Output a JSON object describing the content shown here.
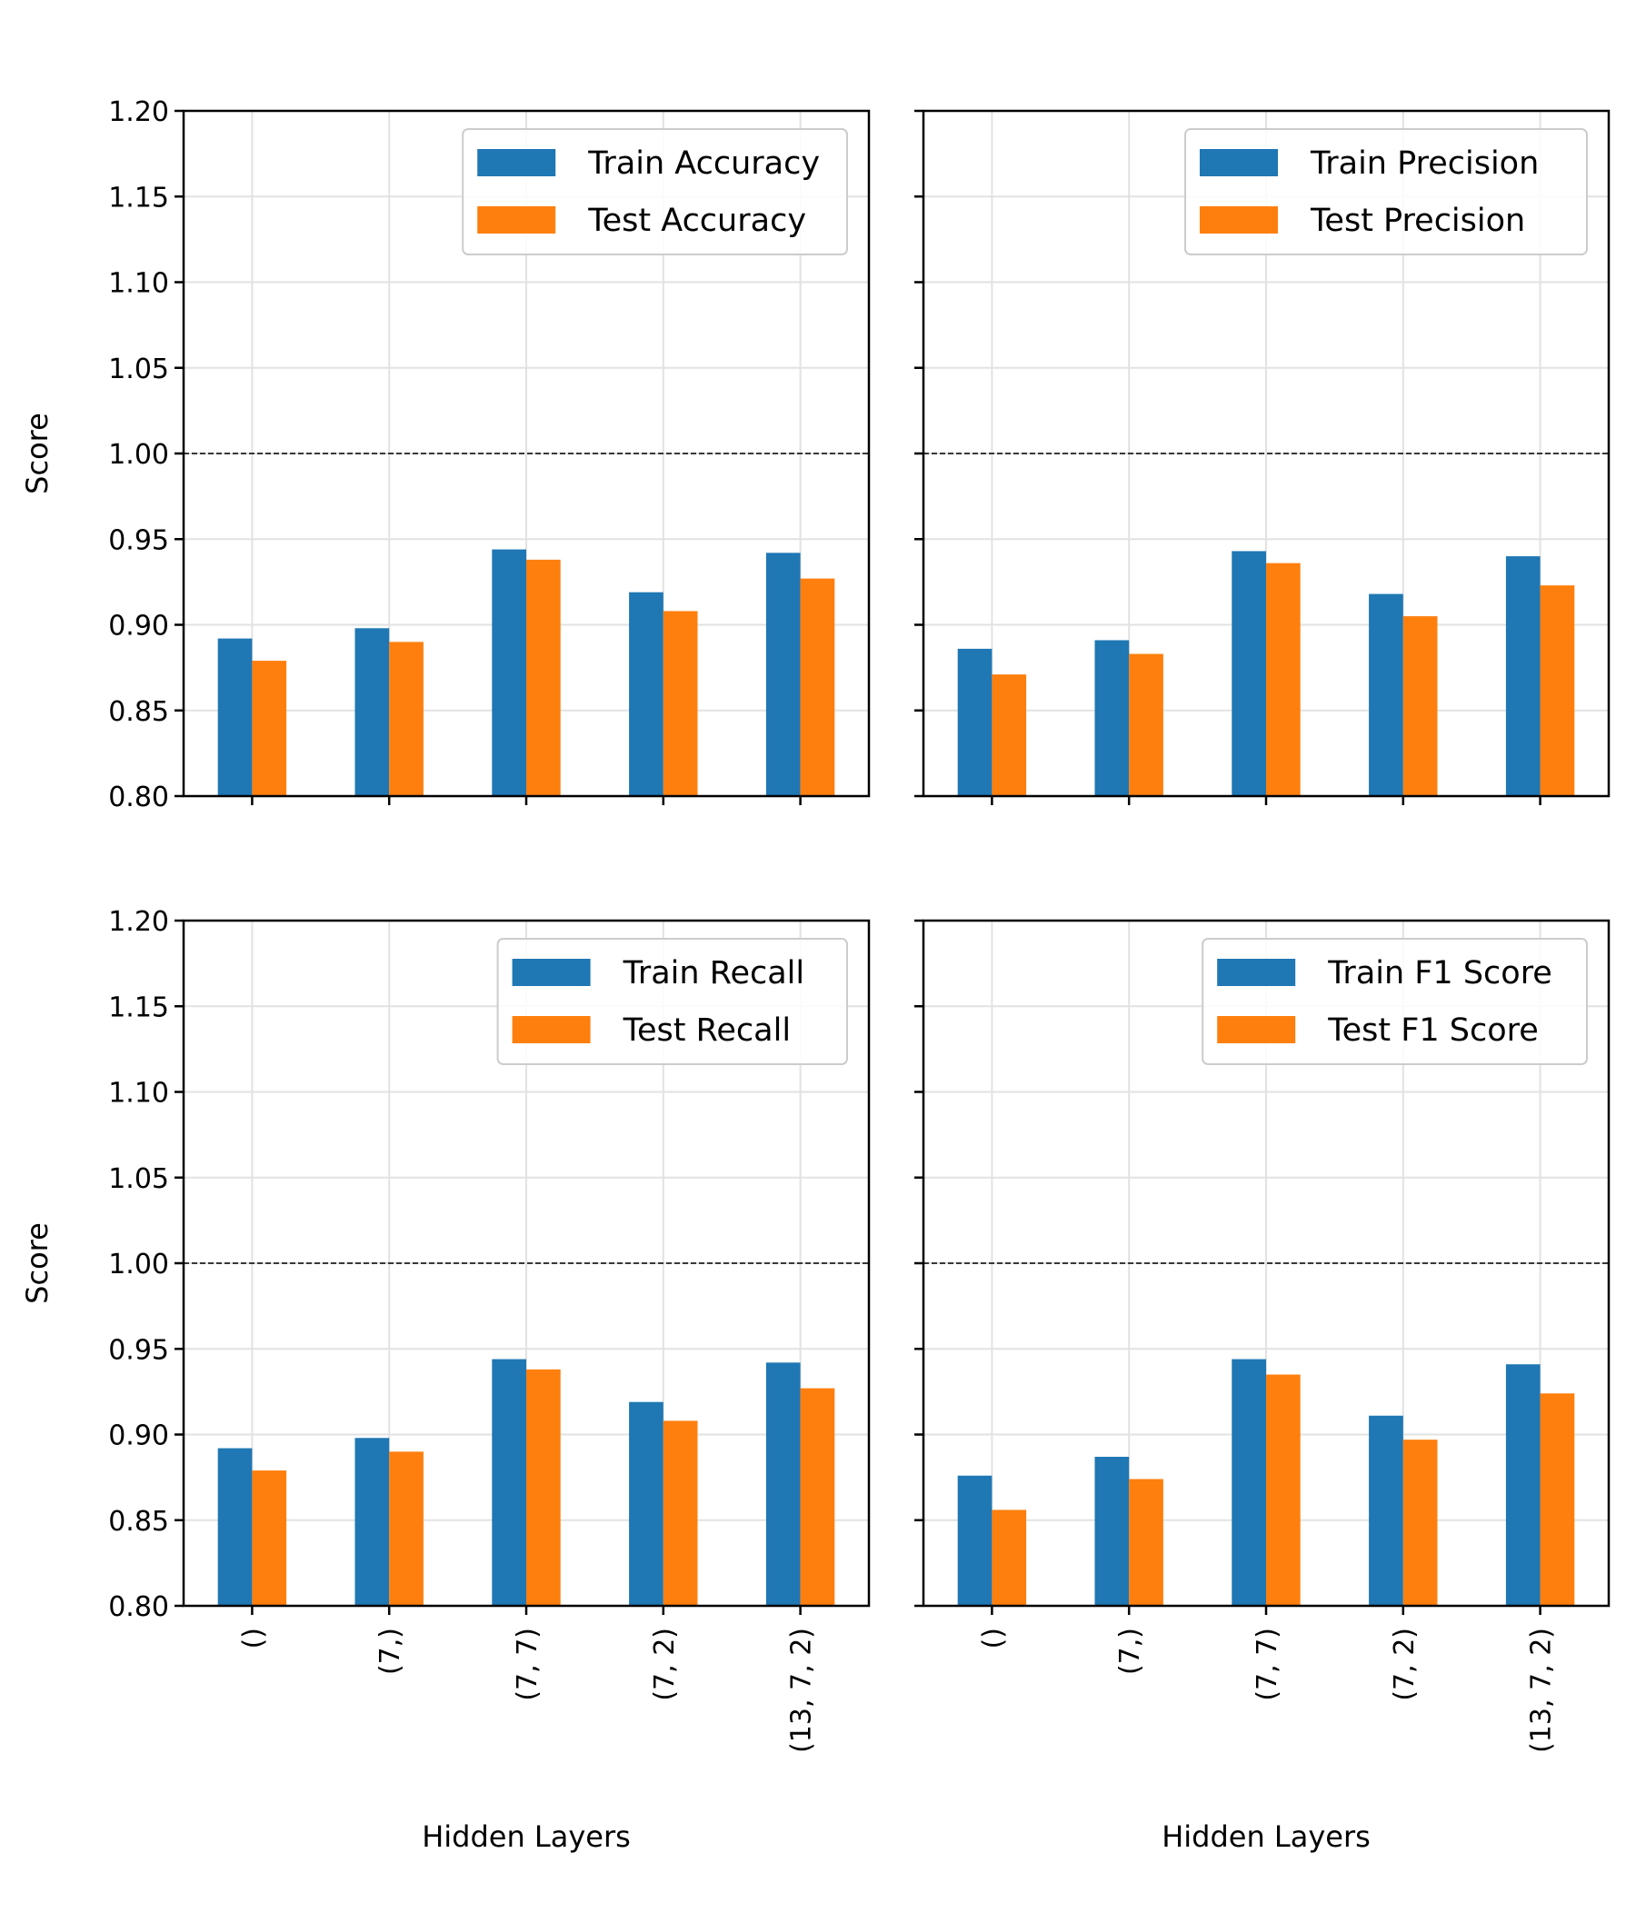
{
  "colors": {
    "train": "#1f77b4",
    "test": "#ff7f0e",
    "grid": "#e2e2e2",
    "reference_line": "#000000"
  },
  "figure": {
    "xlabel": "Hidden Layers",
    "ylabel": "Score"
  },
  "chart_data": [
    {
      "type": "bar",
      "categories": [
        "()",
        "(7,)",
        "(7, 7)",
        "(7, 2)",
        "(13, 7, 2)"
      ],
      "series": [
        {
          "name": "Train Accuracy",
          "values": [
            0.892,
            0.898,
            0.944,
            0.919,
            0.942
          ]
        },
        {
          "name": "Test Accuracy",
          "values": [
            0.879,
            0.89,
            0.938,
            0.908,
            0.927
          ]
        }
      ],
      "ylabel": "Score",
      "xlabel": "",
      "ylim": [
        0.8,
        1.2
      ],
      "yticks": [
        "0.80",
        "0.85",
        "0.90",
        "0.95",
        "1.00",
        "1.05",
        "1.10",
        "1.15",
        "1.20"
      ],
      "reference_line": 1.0,
      "grid": true,
      "legend": "upper right",
      "show_xticklabels": false,
      "show_yticklabels": true
    },
    {
      "type": "bar",
      "categories": [
        "()",
        "(7,)",
        "(7, 7)",
        "(7, 2)",
        "(13, 7, 2)"
      ],
      "series": [
        {
          "name": "Train Precision",
          "values": [
            0.886,
            0.891,
            0.943,
            0.918,
            0.94
          ]
        },
        {
          "name": "Test Precision",
          "values": [
            0.871,
            0.883,
            0.936,
            0.905,
            0.923
          ]
        }
      ],
      "ylabel": "",
      "xlabel": "",
      "ylim": [
        0.8,
        1.2
      ],
      "reference_line": 1.0,
      "grid": true,
      "legend": "upper right",
      "show_xticklabels": false,
      "show_yticklabels": false
    },
    {
      "type": "bar",
      "categories": [
        "()",
        "(7,)",
        "(7, 7)",
        "(7, 2)",
        "(13, 7, 2)"
      ],
      "series": [
        {
          "name": "Train Recall",
          "values": [
            0.892,
            0.898,
            0.944,
            0.919,
            0.942
          ]
        },
        {
          "name": "Test Recall",
          "values": [
            0.879,
            0.89,
            0.938,
            0.908,
            0.927
          ]
        }
      ],
      "ylabel": "Score",
      "xlabel": "Hidden Layers",
      "ylim": [
        0.8,
        1.2
      ],
      "yticks": [
        "0.80",
        "0.85",
        "0.90",
        "0.95",
        "1.00",
        "1.05",
        "1.10",
        "1.15",
        "1.20"
      ],
      "reference_line": 1.0,
      "grid": true,
      "legend": "upper right",
      "show_xticklabels": true,
      "show_yticklabels": true
    },
    {
      "type": "bar",
      "categories": [
        "()",
        "(7,)",
        "(7, 7)",
        "(7, 2)",
        "(13, 7, 2)"
      ],
      "series": [
        {
          "name": "Train F1 Score",
          "values": [
            0.876,
            0.887,
            0.944,
            0.911,
            0.941
          ]
        },
        {
          "name": "Test F1 Score",
          "values": [
            0.856,
            0.874,
            0.935,
            0.897,
            0.924
          ]
        }
      ],
      "ylabel": "",
      "xlabel": "Hidden Layers",
      "ylim": [
        0.8,
        1.2
      ],
      "reference_line": 1.0,
      "grid": true,
      "legend": "upper right",
      "show_xticklabels": true,
      "show_yticklabels": false
    }
  ]
}
